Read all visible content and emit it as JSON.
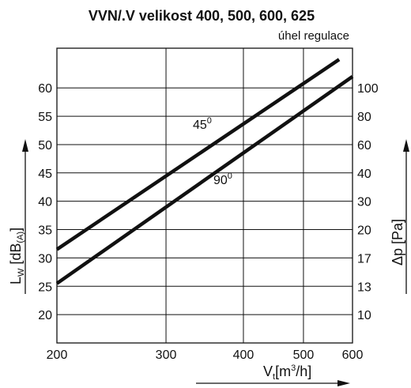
{
  "chart_data": {
    "type": "line",
    "title": "VVN/.V velikost 400, 500, 600, 625",
    "subtitle": "úhel regulace",
    "x_scale": "log",
    "xlim": [
      200,
      600
    ],
    "x_ticks": [
      200,
      300,
      400,
      500,
      600
    ],
    "x_tick_labels": [
      "200",
      "300",
      "400",
      "500",
      "600"
    ],
    "xlabel": {
      "base": "V",
      "sub": "t",
      "mid": "[m",
      "sup": "3",
      "end": "/h]"
    },
    "ylim": [
      15,
      67
    ],
    "y_ticks": [
      20,
      25,
      30,
      35,
      40,
      45,
      50,
      55,
      60
    ],
    "y_tick_labels": [
      "20",
      "25",
      "30",
      "35",
      "40",
      "45",
      "50",
      "55",
      "60"
    ],
    "ylabel": {
      "base": "L",
      "sub": "W",
      "mid": " [dB",
      "sub2": "(A)",
      "end": "]"
    },
    "y2_tick_labels": [
      "10",
      "13",
      "17",
      "20",
      "30",
      "40",
      "60",
      "80",
      "100"
    ],
    "y2label": "Δp [Pa]",
    "grid": true,
    "series": [
      {
        "name": "45",
        "name_sup": "0",
        "x": [
          200,
          571
        ],
        "y": [
          31.5,
          65
        ]
      },
      {
        "name": "90",
        "name_sup": "0",
        "x": [
          200,
          600
        ],
        "y": [
          25.5,
          62
        ]
      }
    ]
  }
}
